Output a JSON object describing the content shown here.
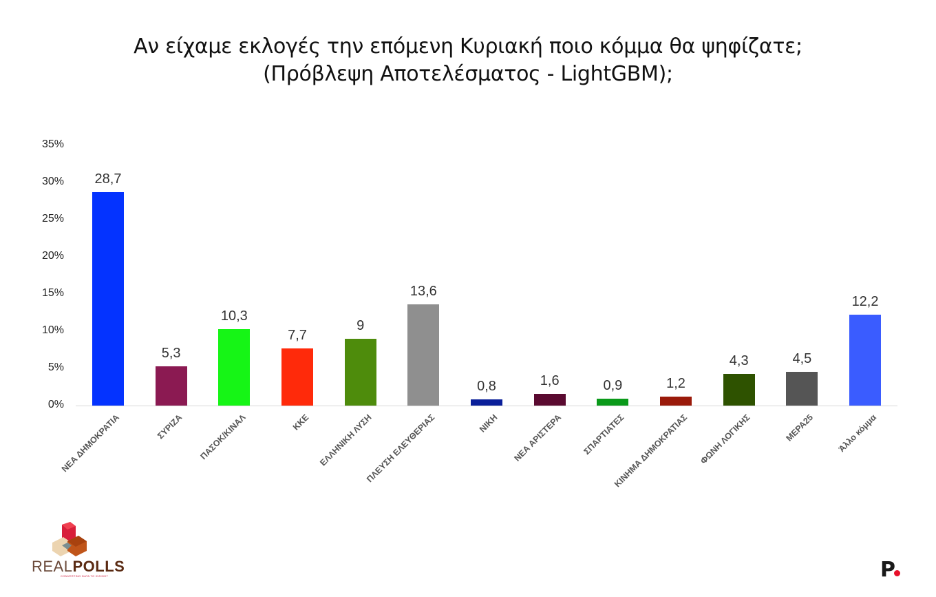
{
  "title": {
    "line1": "Αν είχαμε εκλογές την επόμενη Κυριακή ποιο κόμμα θα ψηφίζατε;",
    "line2": "(Πρόβλεψη Αποτελέσματος - LightGBM);"
  },
  "y_axis": {
    "ticks": [
      "0%",
      "5%",
      "10%",
      "15%",
      "20%",
      "25%",
      "30%",
      "35%"
    ]
  },
  "bars": [
    {
      "label": "ΝΕΑ ΔΗΜΟΚΡΑΤΙΑ",
      "value": 28.7,
      "display": "28,7",
      "color": "#0433ff"
    },
    {
      "label": "ΣΥΡΙΖΑ",
      "value": 5.3,
      "display": "5,3",
      "color": "#8b1a52"
    },
    {
      "label": "ΠΑΣΟΚ/ΚΙΝΑΛ",
      "value": 10.3,
      "display": "10,3",
      "color": "#16f516"
    },
    {
      "label": "ΚΚΕ",
      "value": 7.7,
      "display": "7,7",
      "color": "#ff2a0a"
    },
    {
      "label": "ΕΛΛΗΝΙΚΗ ΛΥΣΗ",
      "value": 9,
      "display": "9",
      "color": "#4e8c0c"
    },
    {
      "label": "ΠΛΕΥΣΗ ΕΛΕΥΘΕΡΙΑΣ",
      "value": 13.6,
      "display": "13,6",
      "color": "#8f8f8f"
    },
    {
      "label": "ΝΙΚΗ",
      "value": 0.8,
      "display": "0,8",
      "color": "#0a1f9a"
    },
    {
      "label": "ΝΕΑ ΑΡΙΣΤΕΡΑ",
      "value": 1.6,
      "display": "1,6",
      "color": "#5a0a30"
    },
    {
      "label": "ΣΠΑΡΤΙΑΤΕΣ",
      "value": 0.9,
      "display": "0,9",
      "color": "#0a9a1a"
    },
    {
      "label": "ΚΙΝΗΜΑ ΔΗΜΟΚΡΑΤΙΑΣ",
      "value": 1.2,
      "display": "1,2",
      "color": "#9a1a0a"
    },
    {
      "label": "ΦΩΝΗ ΛΟΓΙΚΗΣ",
      "value": 4.3,
      "display": "4,3",
      "color": "#2e5200"
    },
    {
      "label": "ΜΕΡΑ25",
      "value": 4.5,
      "display": "4,5",
      "color": "#555555"
    },
    {
      "label": "Άλλο κόμμα",
      "value": 12.2,
      "display": "12,2",
      "color": "#3a5cff"
    }
  ],
  "logos": {
    "left": {
      "name_light": "REAL",
      "name_bold": "POLLS",
      "tagline": "CONVERTING DATA TO INSIGHT"
    },
    "right": {
      "letter": "P"
    }
  },
  "chart_data": {
    "type": "bar",
    "title": "Αν είχαμε εκλογές την επόμενη Κυριακή ποιο κόμμα θα ψηφίζατε; (Πρόβλεψη Αποτελέσματος - LightGBM);",
    "categories": [
      "ΝΕΑ ΔΗΜΟΚΡΑΤΙΑ",
      "ΣΥΡΙΖΑ",
      "ΠΑΣΟΚ/ΚΙΝΑΛ",
      "ΚΚΕ",
      "ΕΛΛΗΝΙΚΗ ΛΥΣΗ",
      "ΠΛΕΥΣΗ ΕΛΕΥΘΕΡΙΑΣ",
      "ΝΙΚΗ",
      "ΝΕΑ ΑΡΙΣΤΕΡΑ",
      "ΣΠΑΡΤΙΑΤΕΣ",
      "ΚΙΝΗΜΑ ΔΗΜΟΚΡΑΤΙΑΣ",
      "ΦΩΝΗ ΛΟΓΙΚΗΣ",
      "ΜΕΡΑ25",
      "Άλλο κόμμα"
    ],
    "values": [
      28.7,
      5.3,
      10.3,
      7.7,
      9,
      13.6,
      0.8,
      1.6,
      0.9,
      1.2,
      4.3,
      4.5,
      12.2
    ],
    "data_labels": [
      "28,7",
      "5,3",
      "10,3",
      "7,7",
      "9",
      "13,6",
      "0,8",
      "1,6",
      "0,9",
      "1,2",
      "4,3",
      "4,5",
      "12,2"
    ],
    "colors": [
      "#0433ff",
      "#8b1a52",
      "#16f516",
      "#ff2a0a",
      "#4e8c0c",
      "#8f8f8f",
      "#0a1f9a",
      "#5a0a30",
      "#0a9a1a",
      "#9a1a0a",
      "#2e5200",
      "#555555",
      "#3a5cff"
    ],
    "xlabel": "",
    "ylabel": "",
    "ylim": [
      0,
      35
    ],
    "yticks": [
      "0%",
      "5%",
      "10%",
      "15%",
      "20%",
      "25%",
      "30%",
      "35%"
    ],
    "grid": false,
    "legend": "none",
    "x_tick_rotation": -45
  }
}
